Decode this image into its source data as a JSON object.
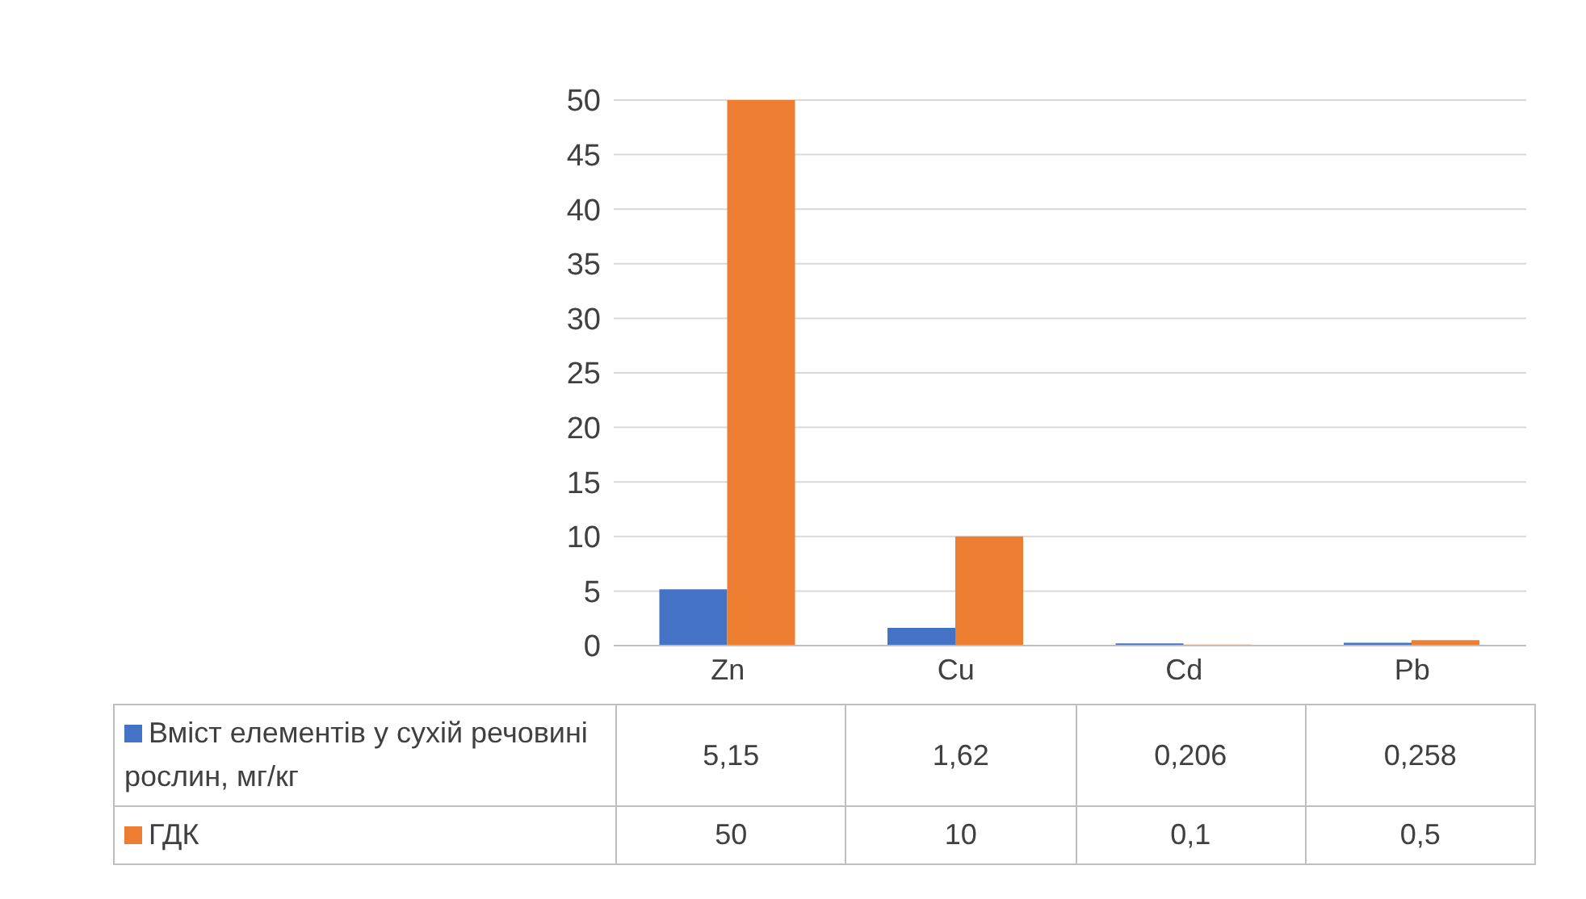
{
  "chart_data": {
    "type": "bar",
    "categories": [
      "Zn",
      "Cu",
      "Cd",
      "Pb"
    ],
    "series": [
      {
        "name": "Вміст елементів у сухій речовині рослин, мг/кг",
        "color": "#4472c4",
        "values": [
          5.15,
          1.62,
          0.206,
          0.258
        ],
        "value_labels": [
          "5,15",
          "1,62",
          "0,206",
          "0,258"
        ]
      },
      {
        "name": "ГДК",
        "color": "#ed7d31",
        "values": [
          50,
          10,
          0.1,
          0.5
        ],
        "value_labels": [
          "50",
          "10",
          "0,1",
          "0,5"
        ]
      }
    ],
    "ylim": [
      0,
      50
    ],
    "yticks": [
      0,
      5,
      10,
      15,
      20,
      25,
      30,
      35,
      40,
      45,
      50
    ],
    "grid": "y",
    "legend": "bottom"
  }
}
